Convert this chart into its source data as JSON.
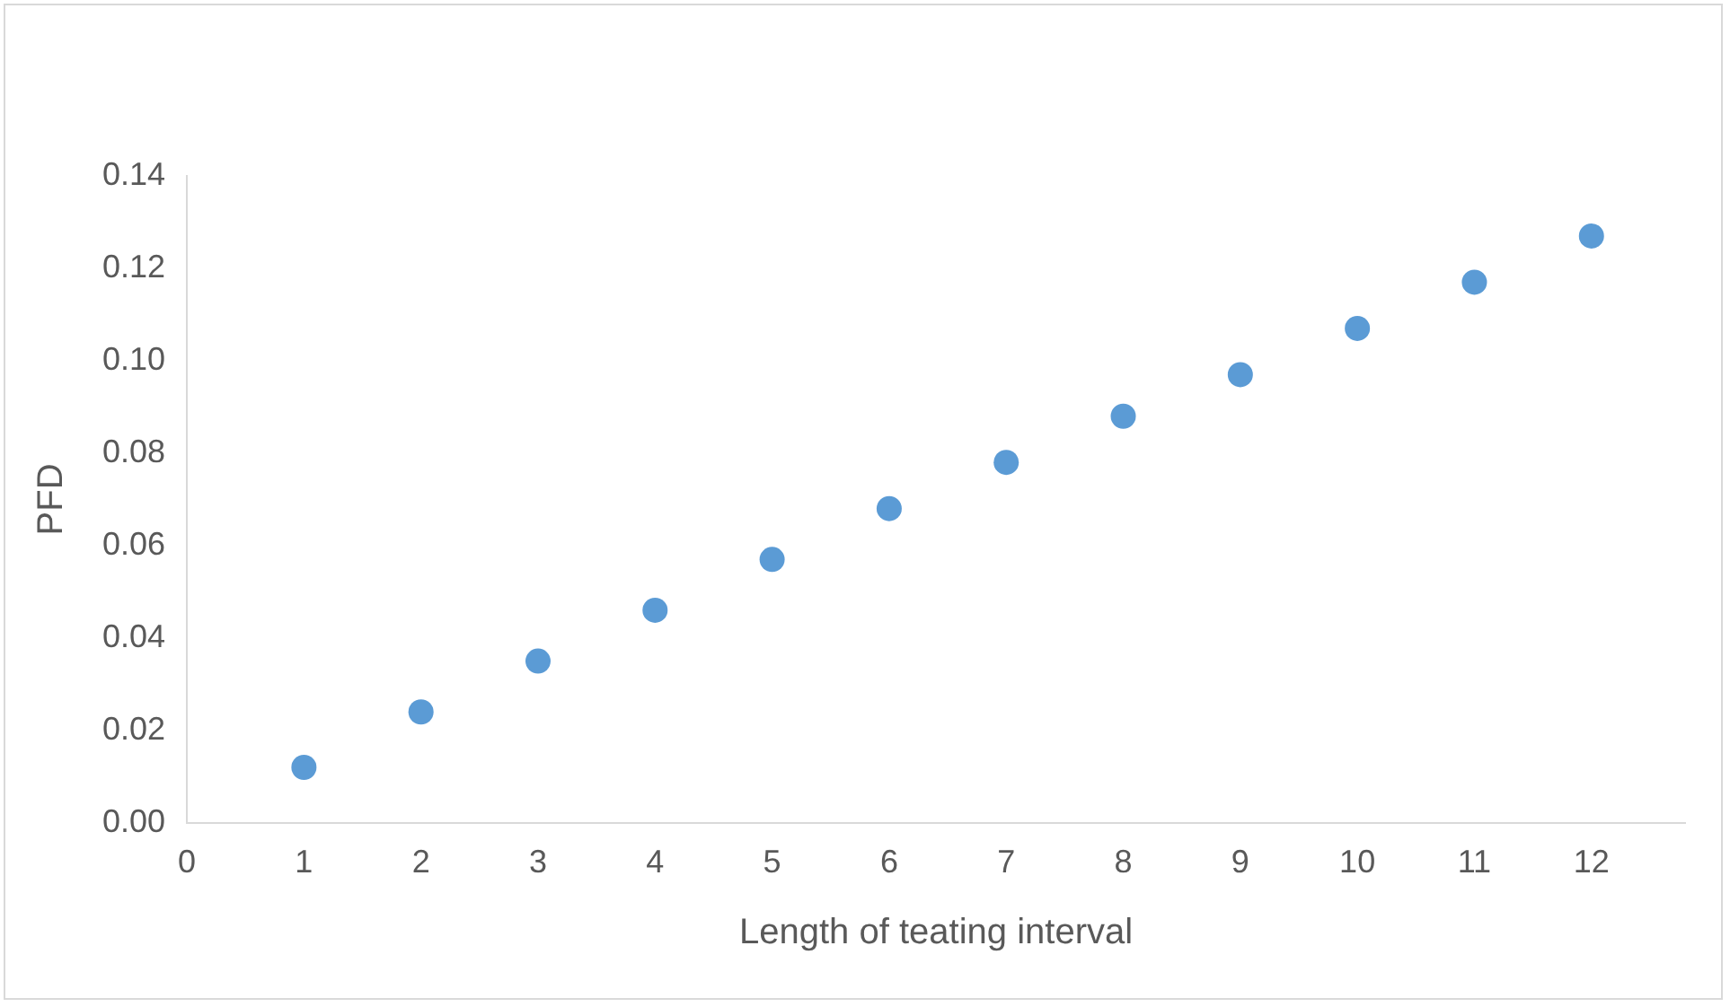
{
  "chart_data": {
    "type": "scatter",
    "xlabel": "Length of teating interval",
    "ylabel": "PFD",
    "x": [
      1,
      2,
      3,
      4,
      5,
      6,
      7,
      8,
      9,
      10,
      11,
      12
    ],
    "series": [
      {
        "color": "#5b9bd5",
        "values": [
          0.012,
          0.024,
          0.035,
          0.046,
          0.057,
          0.068,
          0.078,
          0.088,
          0.097,
          0.107,
          0.117,
          0.127
        ]
      }
    ],
    "xlim": [
      0,
      12.8
    ],
    "xticks": [
      0,
      1,
      2,
      3,
      4,
      5,
      6,
      7,
      8,
      9,
      10,
      11,
      12
    ],
    "ylim": [
      0,
      0.14
    ],
    "yticks": [
      {
        "value": 0,
        "label": "0.00"
      },
      {
        "value": 0.02,
        "label": "0.02"
      },
      {
        "value": 0.04,
        "label": "0.04"
      },
      {
        "value": 0.06,
        "label": "0.06"
      },
      {
        "value": 0.08,
        "label": "0.08"
      },
      {
        "value": 0.1,
        "label": "0.10"
      },
      {
        "value": 0.12,
        "label": "0.12"
      },
      {
        "value": 0.14,
        "label": "0.14"
      }
    ],
    "grid": false,
    "legend": false,
    "marker": "circle"
  }
}
